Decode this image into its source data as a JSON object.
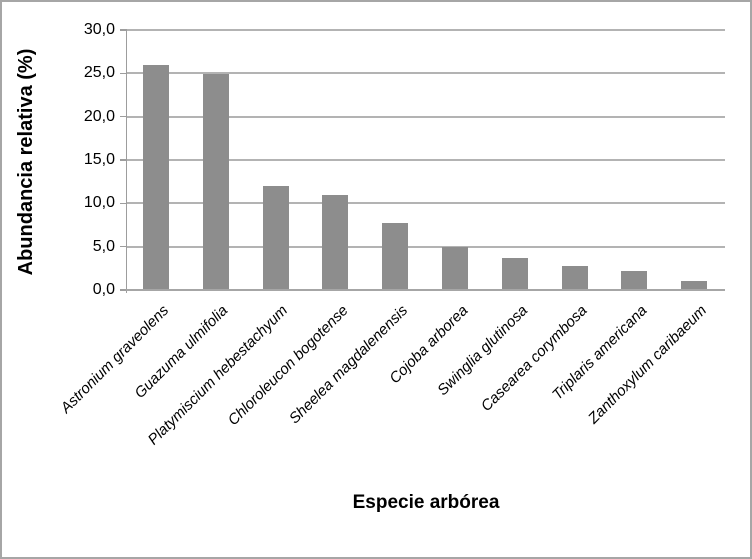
{
  "chart_data": {
    "type": "bar",
    "title": "",
    "xlabel": "Especie arbórea",
    "ylabel": "Abundancia relativa (%)",
    "categories": [
      "Astronium graveolens",
      "Guazuma ulmifolia",
      "Platymiscium hebestachyum",
      "Chloroleucon bogotense",
      "Sheelea magdalenensis",
      "Cojoba arborea",
      "Swinglia glutinosa",
      "Casearea corymbosa",
      "Triplaris americana",
      "Zanthoxylum caribaeum"
    ],
    "values": [
      26.0,
      24.9,
      12.0,
      11.0,
      7.7,
      5.0,
      3.7,
      2.8,
      2.2,
      1.0
    ],
    "ylim": [
      0,
      30
    ],
    "ytick_step": 5,
    "ytick_labels": [
      "0,0",
      "5,0",
      "10,0",
      "15,0",
      "20,0",
      "25,0",
      "30,0"
    ],
    "grid": true,
    "legend": "none",
    "colors": {
      "bar": "#8d8d8d",
      "gridline": "#b3b3b3",
      "axis": "#9d9d9d",
      "frame": "#a6a6a6",
      "text": "#000000",
      "background": "#ffffff"
    }
  }
}
